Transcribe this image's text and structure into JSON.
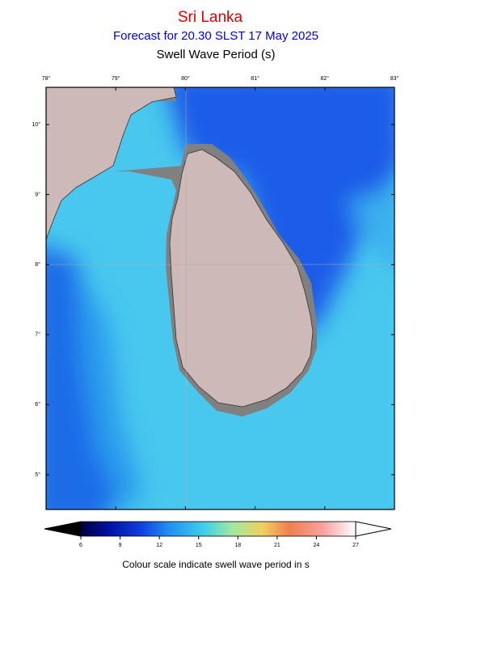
{
  "header": {
    "title": "Sri Lanka",
    "subtitle": "Forecast for  20.30 SLST 17 May 2025",
    "variable": "Swell Wave Period (s)"
  },
  "map": {
    "longitude_labels": [
      "78°",
      "79°",
      "80°",
      "81°",
      "82°",
      "83°"
    ],
    "latitude_labels": [
      "10°",
      "9°",
      "8°",
      "7°",
      "6°",
      "5°"
    ]
  },
  "colorbar": {
    "ticks": [
      6,
      9,
      12,
      15,
      18,
      21,
      24,
      27
    ]
  },
  "caption": "Colour scale indicate swell wave period in s"
}
